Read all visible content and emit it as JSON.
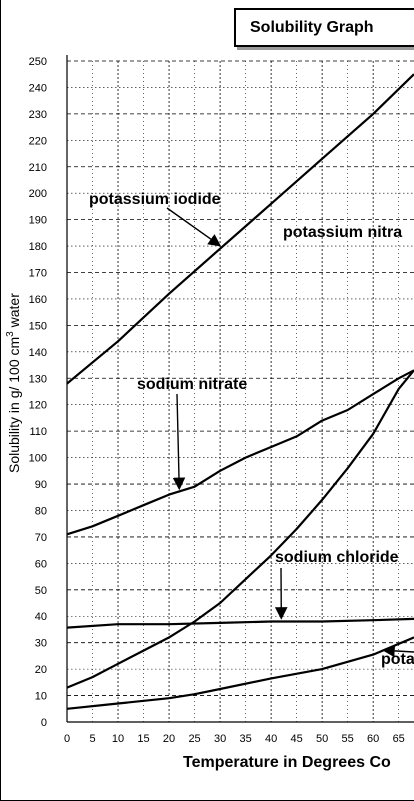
{
  "chart_data": {
    "type": "line",
    "title": "Solubility Graph",
    "xlabel": "Temperature in Degrees Co",
    "ylabel_parts": [
      "Solubility in g/ 100 cm",
      "3",
      " water"
    ],
    "xlim": [
      0,
      68
    ],
    "ylim": [
      0,
      250
    ],
    "xticks": [
      0,
      5,
      10,
      15,
      20,
      25,
      30,
      35,
      40,
      45,
      50,
      55,
      60,
      65
    ],
    "yticks": [
      0,
      10,
      20,
      30,
      40,
      50,
      60,
      70,
      80,
      90,
      100,
      110,
      120,
      130,
      140,
      150,
      160,
      170,
      180,
      190,
      200,
      210,
      220,
      230,
      240,
      250
    ],
    "grid": true,
    "series": [
      {
        "name": "potassium iodide",
        "x": [
          0,
          10,
          20,
          30,
          40,
          50,
          60,
          68
        ],
        "y": [
          128,
          144,
          162,
          179,
          196,
          213,
          230,
          245
        ]
      },
      {
        "name": "potassium nitrate",
        "x": [
          0,
          5,
          10,
          15,
          20,
          25,
          30,
          35,
          40,
          45,
          50,
          55,
          60,
          65,
          68
        ],
        "y": [
          13,
          17,
          22,
          27,
          32,
          38,
          45,
          54,
          63,
          73,
          84,
          96,
          109,
          126,
          133
        ]
      },
      {
        "name": "sodium nitrate",
        "x": [
          0,
          5,
          10,
          15,
          20,
          25,
          30,
          35,
          40,
          45,
          50,
          55,
          60,
          65,
          68
        ],
        "y": [
          71,
          74,
          78,
          82,
          86,
          89,
          95,
          100,
          104,
          108,
          114,
          118,
          124,
          130,
          133
        ]
      },
      {
        "name": "sodium chloride",
        "x": [
          0,
          10,
          20,
          30,
          40,
          50,
          60,
          68
        ],
        "y": [
          35.7,
          37,
          37,
          37.5,
          38,
          38,
          38.5,
          39
        ]
      },
      {
        "name": "potassium chlorate",
        "x": [
          0,
          10,
          20,
          25,
          30,
          40,
          50,
          60,
          68
        ],
        "y": [
          5,
          7,
          9,
          10.5,
          12.5,
          16.5,
          20,
          25.5,
          32
        ]
      }
    ],
    "annotations": [
      {
        "text": "potassium iodide",
        "series": "potassium iodide",
        "tip_x": 30,
        "tip_y": 179
      },
      {
        "text": "potassium nitra",
        "series": "potassium nitrate",
        "tip_x": null,
        "tip_y": null
      },
      {
        "text": "sodium nitrate",
        "series": "sodium nitrate",
        "tip_x": 22,
        "tip_y": 87
      },
      {
        "text": "sodium chloride",
        "series": "sodium chloride",
        "tip_x": 42,
        "tip_y": 38
      },
      {
        "text": "pota",
        "series": "potassium chlorate",
        "tip_x": 62,
        "tip_y": 26
      }
    ]
  }
}
